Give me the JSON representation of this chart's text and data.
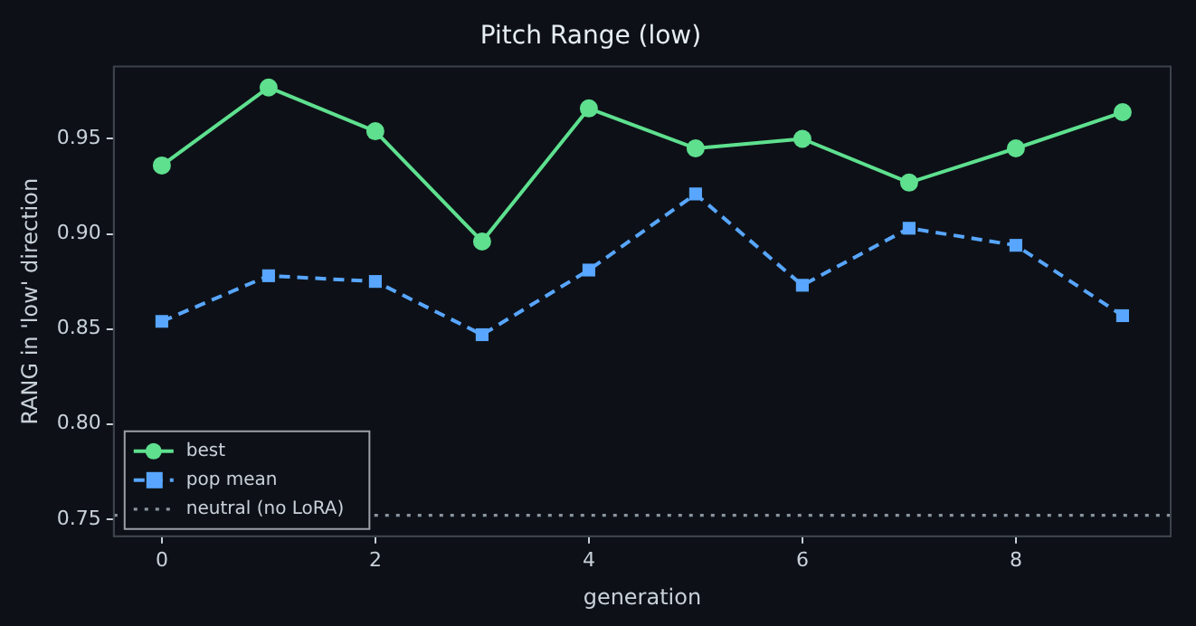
{
  "chart_data": {
    "type": "line",
    "title": "Pitch Range (low)",
    "xlabel": "generation",
    "ylabel": "RANG in 'low' direction",
    "x": [
      0,
      1,
      2,
      3,
      4,
      5,
      6,
      7,
      8,
      9
    ],
    "series": [
      {
        "name": "best",
        "color": "#5ee08f",
        "marker": "circle",
        "line_style": "solid",
        "values": [
          0.936,
          0.977,
          0.954,
          0.896,
          0.966,
          0.945,
          0.95,
          0.927,
          0.945,
          0.964
        ]
      },
      {
        "name": "pop mean",
        "color": "#58a6ff",
        "marker": "square",
        "line_style": "dashed",
        "values": [
          0.854,
          0.878,
          0.875,
          0.847,
          0.881,
          0.921,
          0.873,
          0.903,
          0.894,
          0.857
        ]
      }
    ],
    "ref_lines": [
      {
        "axis": "y",
        "value": 0.752,
        "label": "neutral (no LoRA)",
        "color": "#8b949e",
        "line_style": "dotted"
      }
    ],
    "xlim": [
      -0.45,
      9.45
    ],
    "xticks": [
      0,
      2,
      4,
      6,
      8
    ],
    "ylim": [
      0.741,
      0.988
    ],
    "yticks": [
      {
        "value": 0.75,
        "label": "0.75"
      },
      {
        "value": 0.8,
        "label": "0.80"
      },
      {
        "value": 0.85,
        "label": "0.85"
      },
      {
        "value": 0.9,
        "label": "0.90"
      },
      {
        "value": 0.95,
        "label": "0.95"
      }
    ],
    "grid": false,
    "legend": "bottom left"
  }
}
